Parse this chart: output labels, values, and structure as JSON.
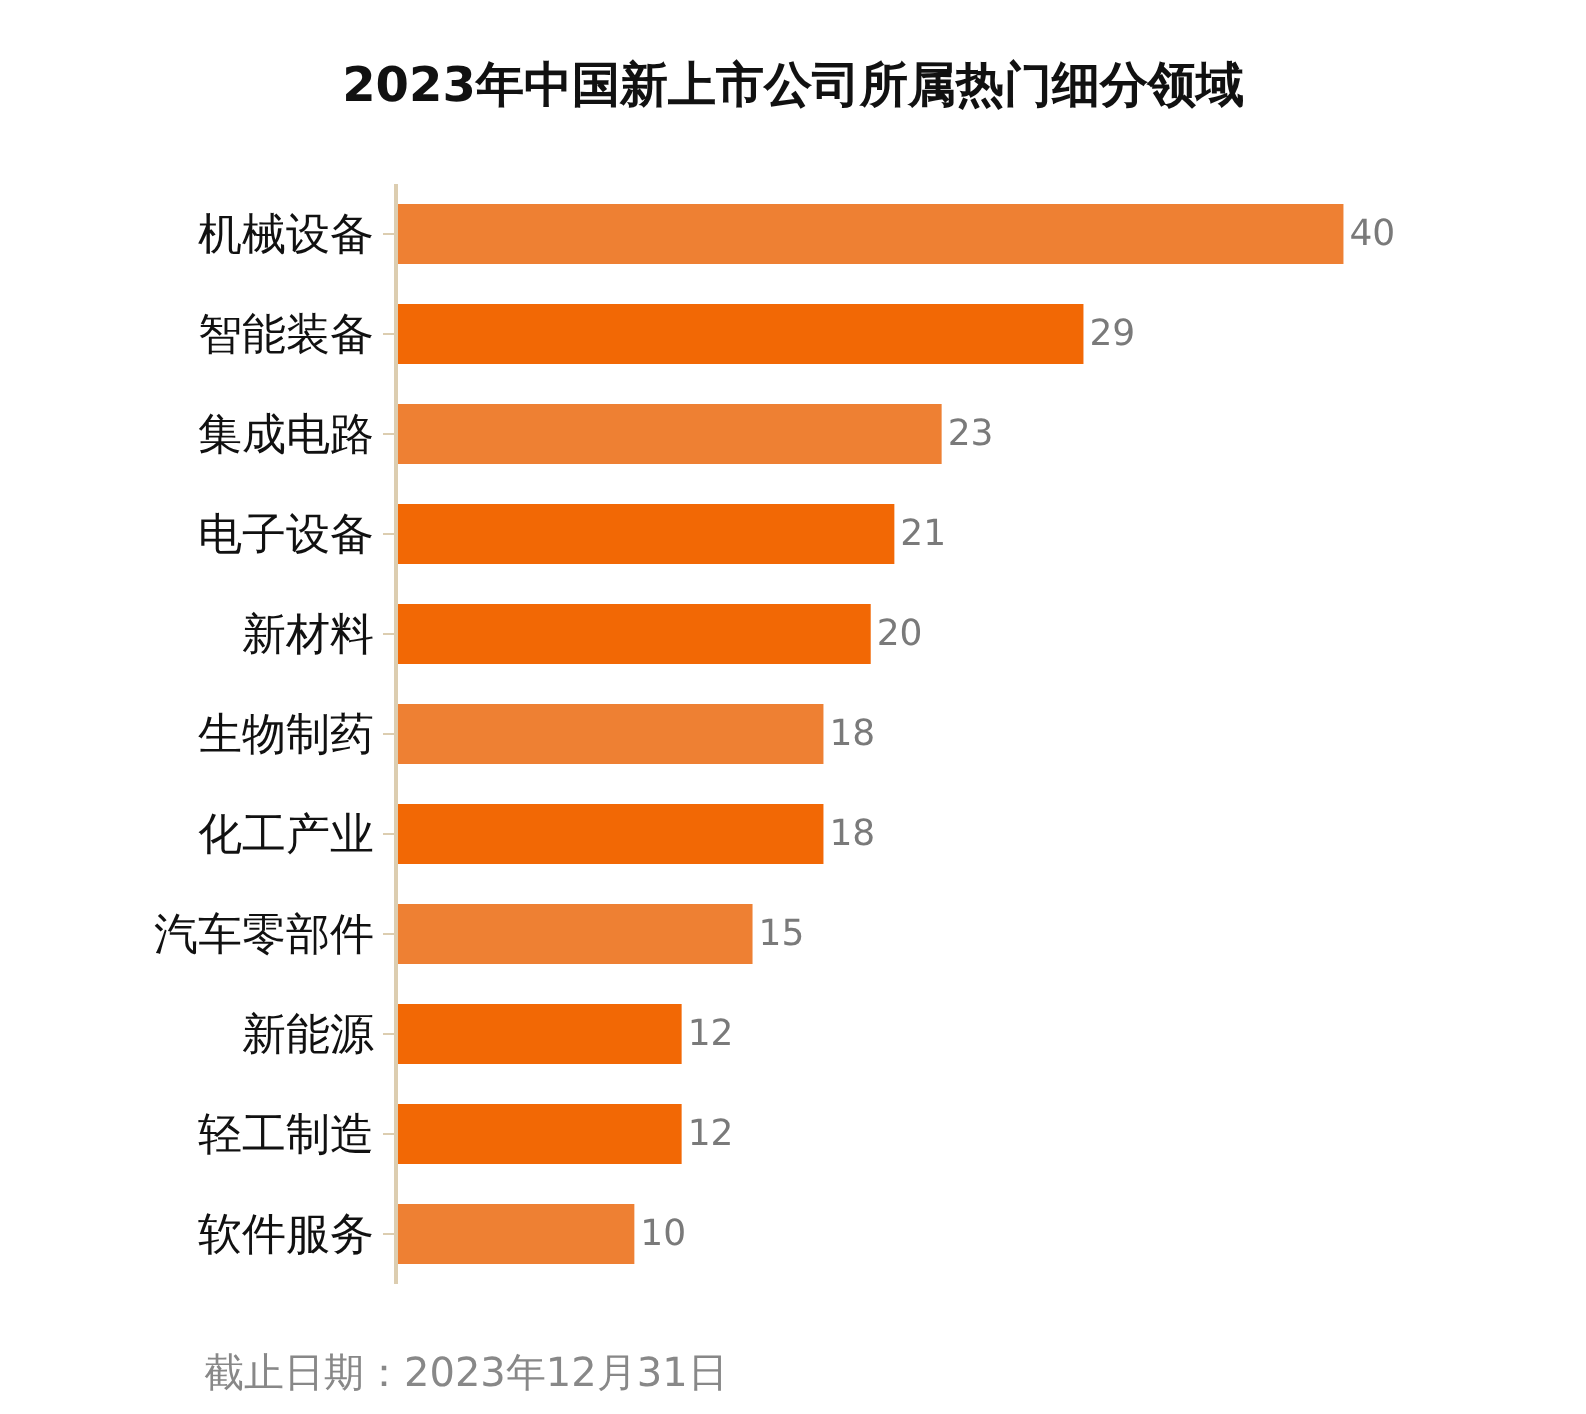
{
  "chart_data": {
    "type": "bar",
    "orientation": "horizontal",
    "title": "2023年中国新上市公司所属热门细分领域",
    "categories": [
      "机械设备",
      "智能装备",
      "集成电路",
      "电子设备",
      "新材料",
      "生物制药",
      "化工产业",
      "汽车零部件",
      "新能源",
      "轻工制造",
      "软件服务"
    ],
    "values": [
      40,
      29,
      23,
      21,
      20,
      18,
      18,
      15,
      12,
      12,
      10
    ],
    "colors": [
      "#ee8033",
      "#f26805",
      "#ee8033",
      "#f26805",
      "#f26805",
      "#ee8033",
      "#f26805",
      "#ee8033",
      "#f26805",
      "#f26805",
      "#ee8033"
    ],
    "data_labels": true,
    "annotations": [
      "截止日期：2023年12月31日"
    ]
  }
}
